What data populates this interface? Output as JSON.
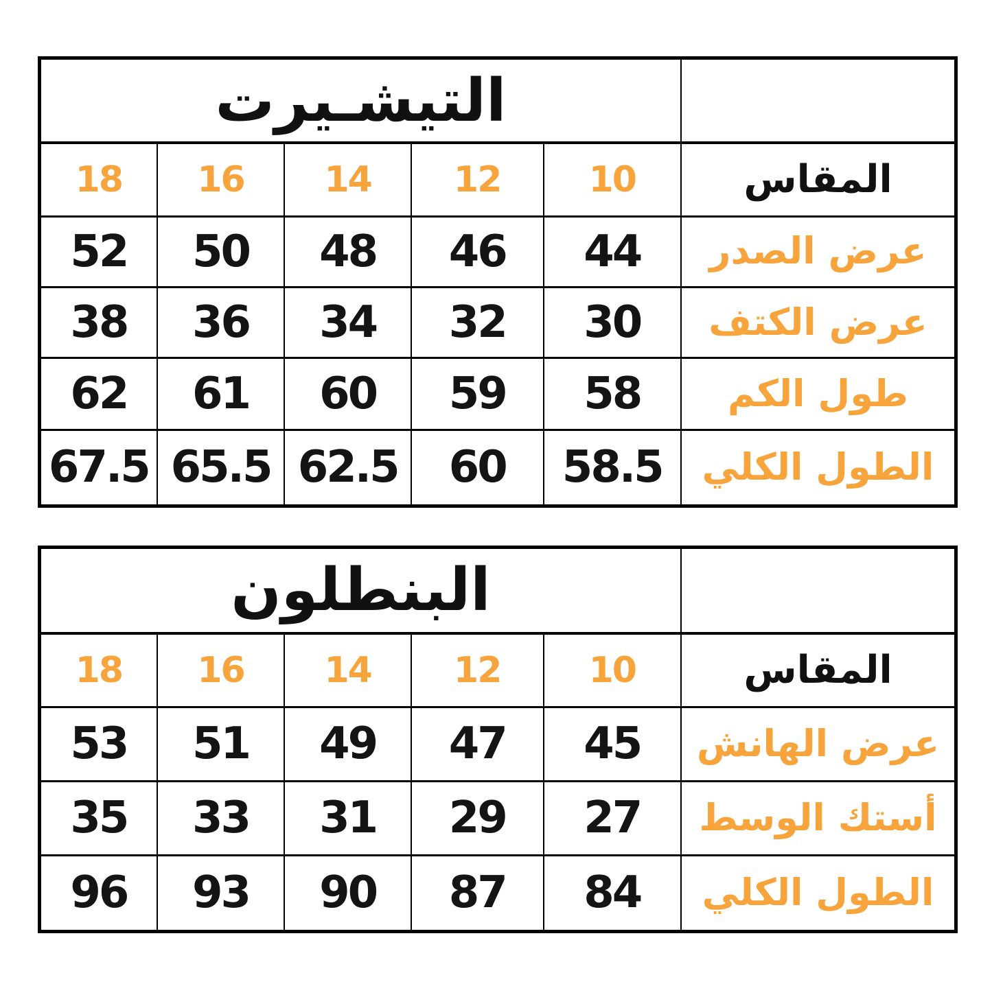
{
  "page": {
    "background": "#ffffff"
  },
  "colors": {
    "accent_orange": "#F7A43C",
    "text_black": "#141414",
    "border_black": "#000000"
  },
  "tables": [
    {
      "id": "tshirt",
      "title": "التيشـيرت",
      "size_header_label": "المقاس",
      "sizes": [
        "18",
        "16",
        "14",
        "12",
        "10"
      ],
      "rows": [
        {
          "label": "عرض الصدر",
          "values": [
            "52",
            "50",
            "48",
            "46",
            "44"
          ]
        },
        {
          "label": "عرض الكتف",
          "values": [
            "38",
            "36",
            "34",
            "32",
            "30"
          ]
        },
        {
          "label": "طول الكم",
          "values": [
            "62",
            "61",
            "60",
            "59",
            "58"
          ]
        },
        {
          "label": "الطول الكلي",
          "values": [
            "67.5",
            "65.5",
            "62.5",
            "60",
            "58.5"
          ]
        }
      ]
    },
    {
      "id": "pants",
      "title": "البنطلون",
      "size_header_label": "المقاس",
      "sizes": [
        "18",
        "16",
        "14",
        "12",
        "10"
      ],
      "rows": [
        {
          "label": "عرض الهانش",
          "values": [
            "53",
            "51",
            "49",
            "47",
            "45"
          ]
        },
        {
          "label": "أستك الوسط",
          "values": [
            "35",
            "33",
            "31",
            "29",
            "27"
          ]
        },
        {
          "label": "الطول الكلي",
          "values": [
            "96",
            "93",
            "90",
            "87",
            "84"
          ]
        }
      ]
    }
  ],
  "chart_data": [
    {
      "type": "table",
      "title": "التيشـيرت",
      "columns": [
        "18",
        "16",
        "14",
        "12",
        "10",
        "المقاس"
      ],
      "rows": [
        [
          "52",
          "50",
          "48",
          "46",
          "44",
          "عرض الصدر"
        ],
        [
          "38",
          "36",
          "34",
          "32",
          "30",
          "عرض الكتف"
        ],
        [
          "62",
          "61",
          "60",
          "59",
          "58",
          "طول الكم"
        ],
        [
          "67.5",
          "65.5",
          "62.5",
          "60",
          "58.5",
          "الطول الكلي"
        ]
      ]
    },
    {
      "type": "table",
      "title": "البنطلون",
      "columns": [
        "18",
        "16",
        "14",
        "12",
        "10",
        "المقاس"
      ],
      "rows": [
        [
          "53",
          "51",
          "49",
          "47",
          "45",
          "عرض الهانش"
        ],
        [
          "35",
          "33",
          "31",
          "29",
          "27",
          "أستك الوسط"
        ],
        [
          "96",
          "93",
          "90",
          "87",
          "84",
          "الطول الكلي"
        ]
      ]
    }
  ]
}
